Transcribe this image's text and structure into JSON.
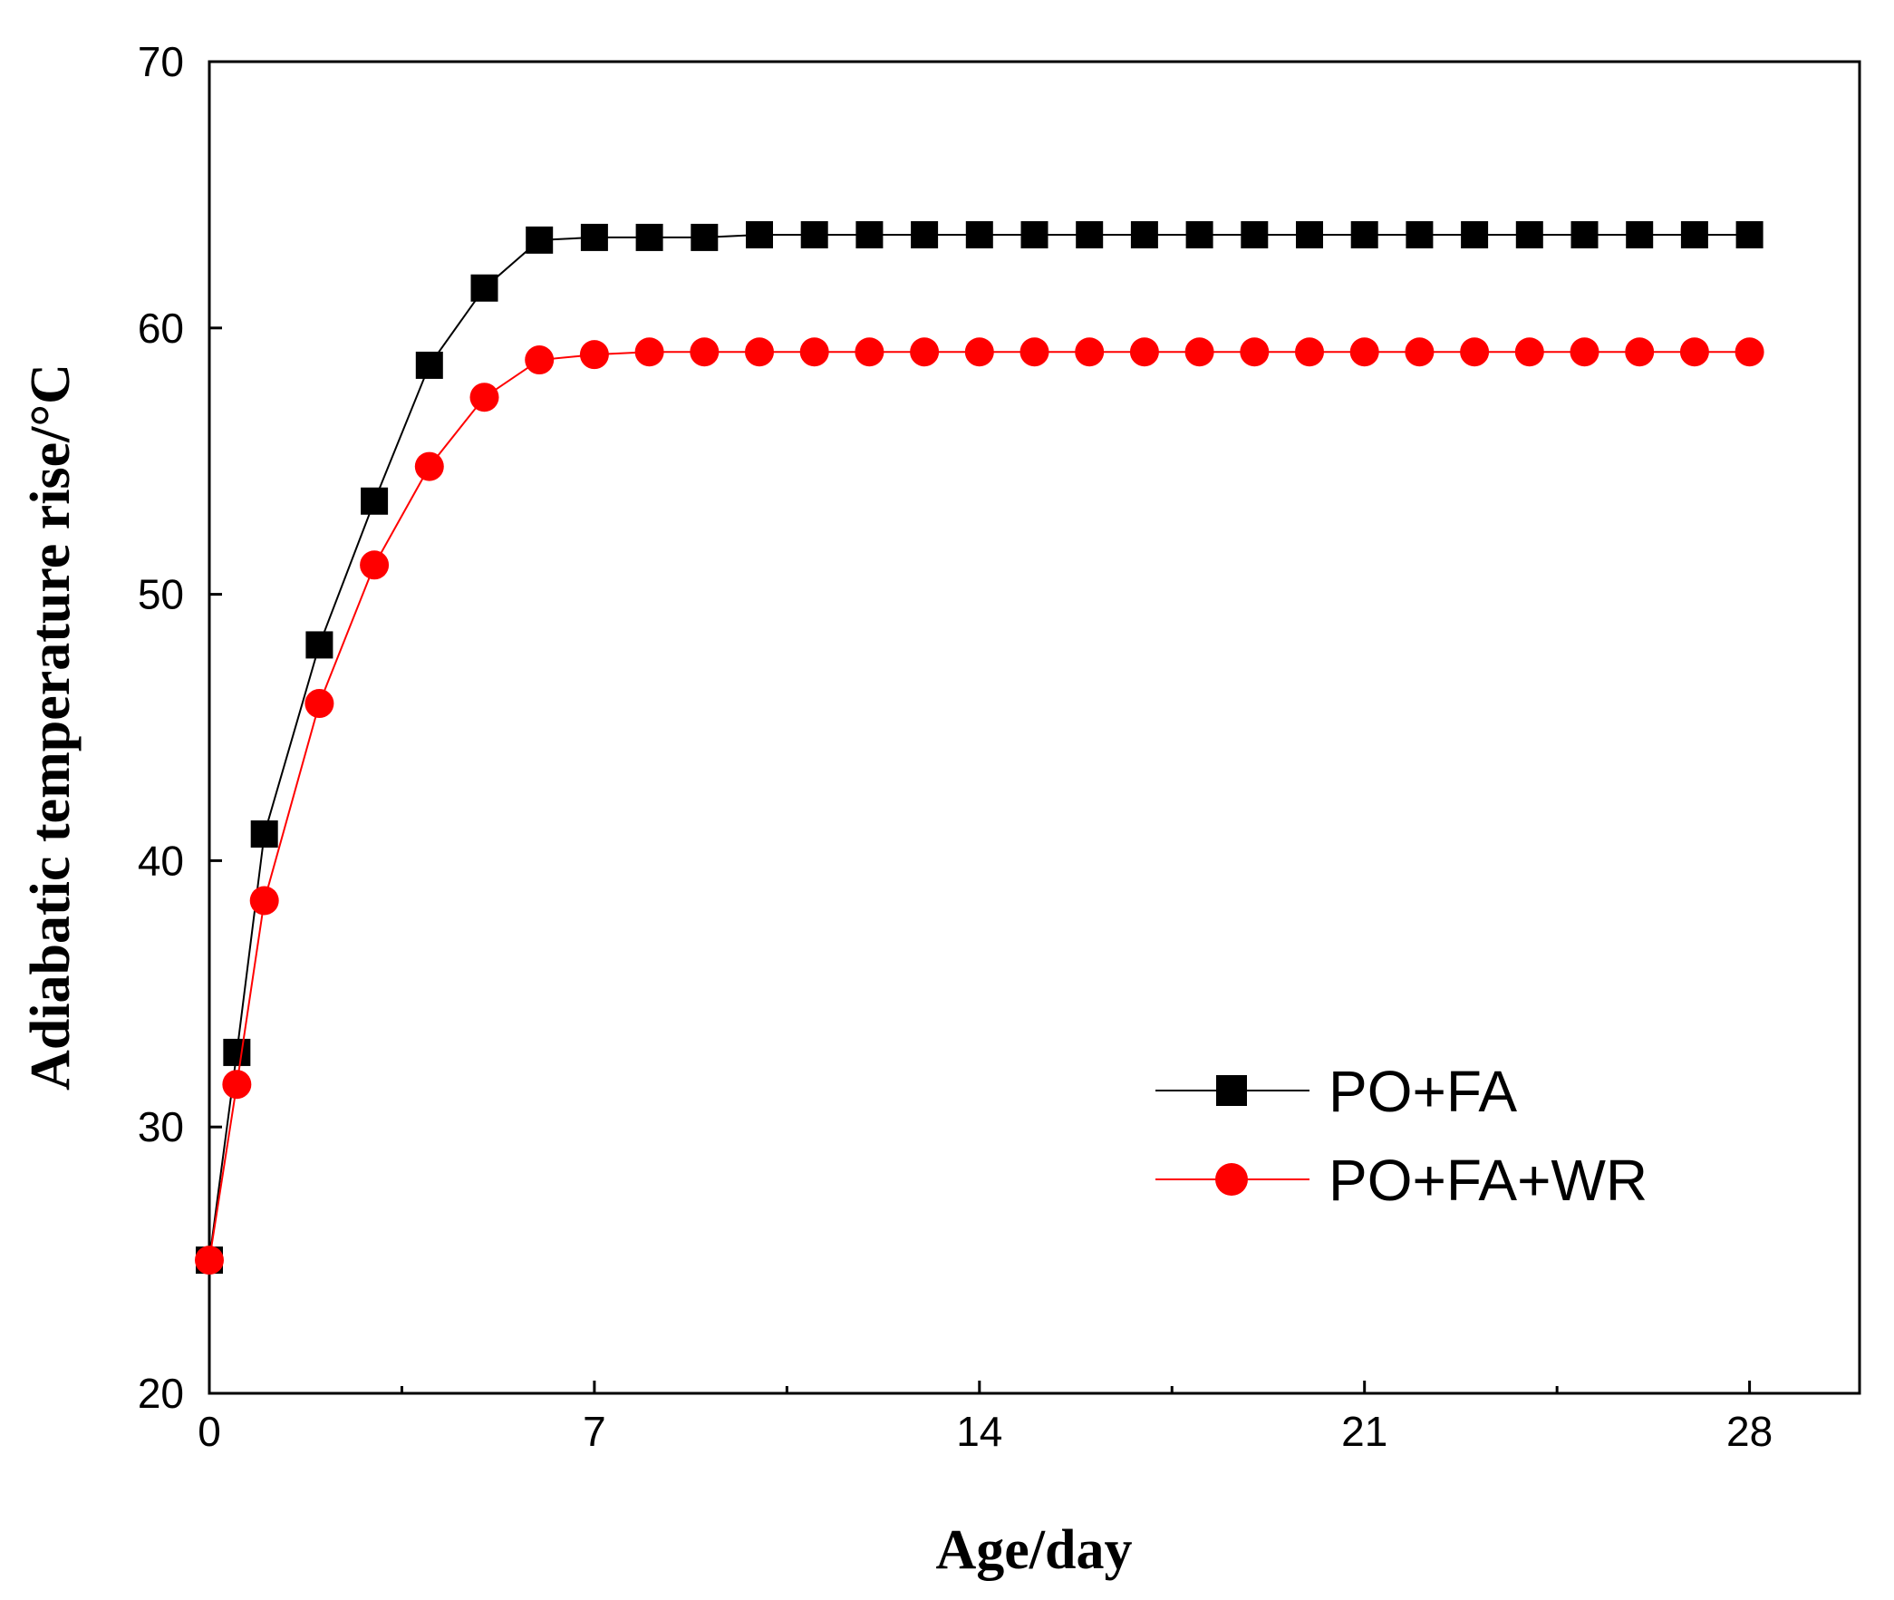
{
  "chart_data": {
    "type": "line",
    "title": "",
    "xlabel": "Age/day",
    "ylabel": "Adiabatic temperature rise/°C",
    "xlim": [
      0,
      30
    ],
    "ylim": [
      20,
      70
    ],
    "xticks": [
      0,
      7,
      14,
      21,
      28
    ],
    "xtick_labels": [
      "0",
      "7",
      "14",
      "21",
      "28"
    ],
    "xminor_ticks": [
      3.5,
      10.5,
      17.5,
      24.5
    ],
    "yticks": [
      20,
      30,
      40,
      50,
      60,
      70
    ],
    "ytick_labels": [
      "20",
      "30",
      "40",
      "50",
      "60",
      "70"
    ],
    "grid": false,
    "legend_position": "lower-right",
    "series": [
      {
        "name": "PO+FA",
        "color": "#000000",
        "marker": "square",
        "x": [
          0,
          0.5,
          1,
          2,
          3,
          4,
          5,
          6,
          7,
          8,
          9,
          10,
          11,
          12,
          13,
          14,
          15,
          16,
          17,
          18,
          19,
          20,
          21,
          22,
          23,
          24,
          25,
          26,
          27,
          28
        ],
        "y": [
          25.0,
          32.8,
          41.0,
          48.1,
          53.5,
          58.6,
          61.5,
          63.3,
          63.4,
          63.4,
          63.4,
          63.5,
          63.5,
          63.5,
          63.5,
          63.5,
          63.5,
          63.5,
          63.5,
          63.5,
          63.5,
          63.5,
          63.5,
          63.5,
          63.5,
          63.5,
          63.5,
          63.5,
          63.5,
          63.5
        ]
      },
      {
        "name": "PO+FA+WR",
        "color": "#ff0000",
        "marker": "circle",
        "x": [
          0,
          0.5,
          1,
          2,
          3,
          4,
          5,
          6,
          7,
          8,
          9,
          10,
          11,
          12,
          13,
          14,
          15,
          16,
          17,
          18,
          19,
          20,
          21,
          22,
          23,
          24,
          25,
          26,
          27,
          28
        ],
        "y": [
          25.0,
          31.6,
          38.5,
          45.9,
          51.1,
          54.8,
          57.4,
          58.8,
          59.0,
          59.1,
          59.1,
          59.1,
          59.1,
          59.1,
          59.1,
          59.1,
          59.1,
          59.1,
          59.1,
          59.1,
          59.1,
          59.1,
          59.1,
          59.1,
          59.1,
          59.1,
          59.1,
          59.1,
          59.1,
          59.1
        ]
      }
    ]
  }
}
